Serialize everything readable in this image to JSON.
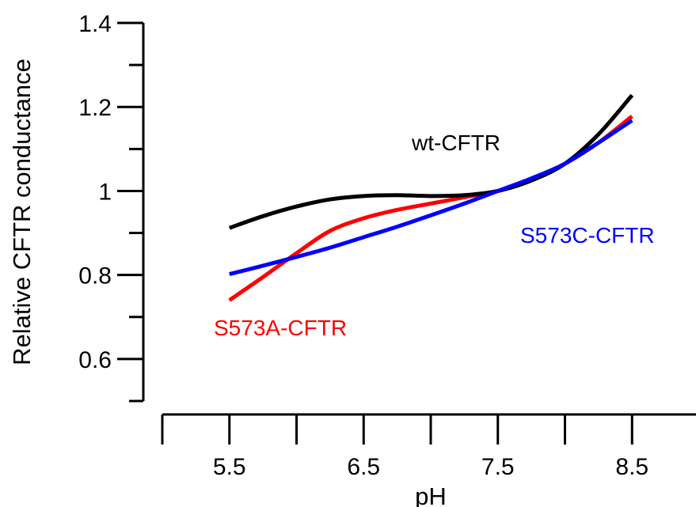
{
  "chart_data": {
    "type": "line",
    "title": "",
    "xlabel": "pH",
    "ylabel": "Relative CFTR conductance",
    "xlim": [
      5.0,
      9.0
    ],
    "ylim": [
      0.5,
      1.4
    ],
    "x_ticks": [
      5.5,
      6.5,
      7.5,
      8.5
    ],
    "x_tick_labels": [
      "5.5",
      "6.5",
      "7.5",
      "8.5"
    ],
    "y_ticks": [
      0.6,
      0.8,
      1.0,
      1.2,
      1.4
    ],
    "y_tick_labels": [
      "0.6",
      "0.8",
      "1",
      "1.2",
      "1.4"
    ],
    "grid": false,
    "legend": "none (series labelled inline)",
    "series": [
      {
        "name": "wt-CFTR",
        "color": "#000000",
        "x": [
          5.5,
          5.75,
          6.0,
          6.25,
          6.5,
          6.75,
          7.0,
          7.25,
          7.5,
          7.75,
          8.0,
          8.25,
          8.5
        ],
        "y": [
          0.912,
          0.94,
          0.963,
          0.98,
          0.988,
          0.99,
          0.988,
          0.99,
          1.0,
          1.025,
          1.065,
          1.135,
          1.228
        ]
      },
      {
        "name": "S573A-CFTR",
        "color": "#ff0000",
        "x": [
          5.5,
          5.75,
          6.0,
          6.25,
          6.5,
          6.75,
          7.0,
          7.25,
          7.5,
          7.75,
          8.0,
          8.25,
          8.5
        ],
        "y": [
          0.74,
          0.795,
          0.852,
          0.905,
          0.935,
          0.955,
          0.97,
          0.985,
          1.0,
          1.025,
          1.065,
          1.115,
          1.178
        ]
      },
      {
        "name": "S573C-CFTR",
        "color": "#0000ff",
        "x": [
          5.5,
          5.75,
          6.0,
          6.25,
          6.5,
          6.75,
          7.0,
          7.25,
          7.5,
          7.75,
          8.0,
          8.25,
          8.5
        ],
        "y": [
          0.802,
          0.822,
          0.843,
          0.865,
          0.89,
          0.915,
          0.942,
          0.97,
          1.0,
          1.03,
          1.065,
          1.115,
          1.168
        ]
      }
    ]
  }
}
